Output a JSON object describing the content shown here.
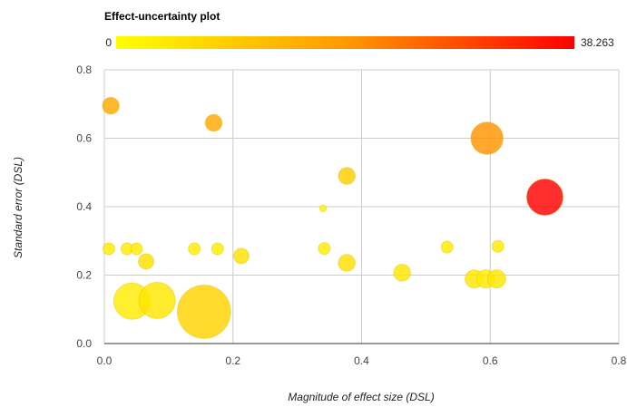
{
  "chart_data": {
    "type": "scatter",
    "title": "Effect-uncertainty plot",
    "xlabel": "Magnitude of effect size (DSL)",
    "ylabel": "Standard error (DSL)",
    "xlim": [
      0,
      0.8
    ],
    "ylim": [
      0,
      0.8
    ],
    "x_ticks": [
      "0.0",
      "0.2",
      "0.4",
      "0.6",
      "0.8"
    ],
    "y_ticks": [
      "0.0",
      "0.2",
      "0.4",
      "0.6",
      "0.8"
    ],
    "grid": true,
    "color_scale": {
      "min_label": "0",
      "max_label": "38.263",
      "min": 0,
      "max": 38.263,
      "colors": [
        "#ffff00",
        "#ff8800",
        "#ff0000"
      ]
    },
    "points": [
      {
        "x": 0.01,
        "y": 0.695,
        "size": 6,
        "color_value": 14
      },
      {
        "x": 0.17,
        "y": 0.645,
        "size": 6,
        "color_value": 14
      },
      {
        "x": 0.595,
        "y": 0.6,
        "size": 22,
        "color_value": 17
      },
      {
        "x": 0.377,
        "y": 0.49,
        "size": 6,
        "color_value": 8
      },
      {
        "x": 0.34,
        "y": 0.395,
        "size": 1,
        "color_value": 2
      },
      {
        "x": 0.685,
        "y": 0.428,
        "size": 28,
        "color_value": 38.263
      },
      {
        "x": 0.007,
        "y": 0.277,
        "size": 3,
        "color_value": 3
      },
      {
        "x": 0.035,
        "y": 0.277,
        "size": 3,
        "color_value": 3
      },
      {
        "x": 0.05,
        "y": 0.277,
        "size": 3,
        "color_value": 3
      },
      {
        "x": 0.065,
        "y": 0.24,
        "size": 5,
        "color_value": 5
      },
      {
        "x": 0.14,
        "y": 0.277,
        "size": 3,
        "color_value": 3
      },
      {
        "x": 0.176,
        "y": 0.277,
        "size": 3,
        "color_value": 3
      },
      {
        "x": 0.213,
        "y": 0.256,
        "size": 5,
        "color_value": 5
      },
      {
        "x": 0.342,
        "y": 0.278,
        "size": 3,
        "color_value": 3
      },
      {
        "x": 0.377,
        "y": 0.236,
        "size": 6,
        "color_value": 5
      },
      {
        "x": 0.463,
        "y": 0.207,
        "size": 6,
        "color_value": 4
      },
      {
        "x": 0.533,
        "y": 0.282,
        "size": 3,
        "color_value": 3
      },
      {
        "x": 0.575,
        "y": 0.189,
        "size": 7,
        "color_value": 4
      },
      {
        "x": 0.593,
        "y": 0.189,
        "size": 7,
        "color_value": 3
      },
      {
        "x": 0.61,
        "y": 0.189,
        "size": 7,
        "color_value": 4
      },
      {
        "x": 0.612,
        "y": 0.284,
        "size": 3,
        "color_value": 3
      },
      {
        "x": 0.043,
        "y": 0.124,
        "size": 28,
        "color_value": 3
      },
      {
        "x": 0.082,
        "y": 0.126,
        "size": 28,
        "color_value": 4
      },
      {
        "x": 0.155,
        "y": 0.093,
        "size": 60,
        "color_value": 7
      }
    ]
  }
}
